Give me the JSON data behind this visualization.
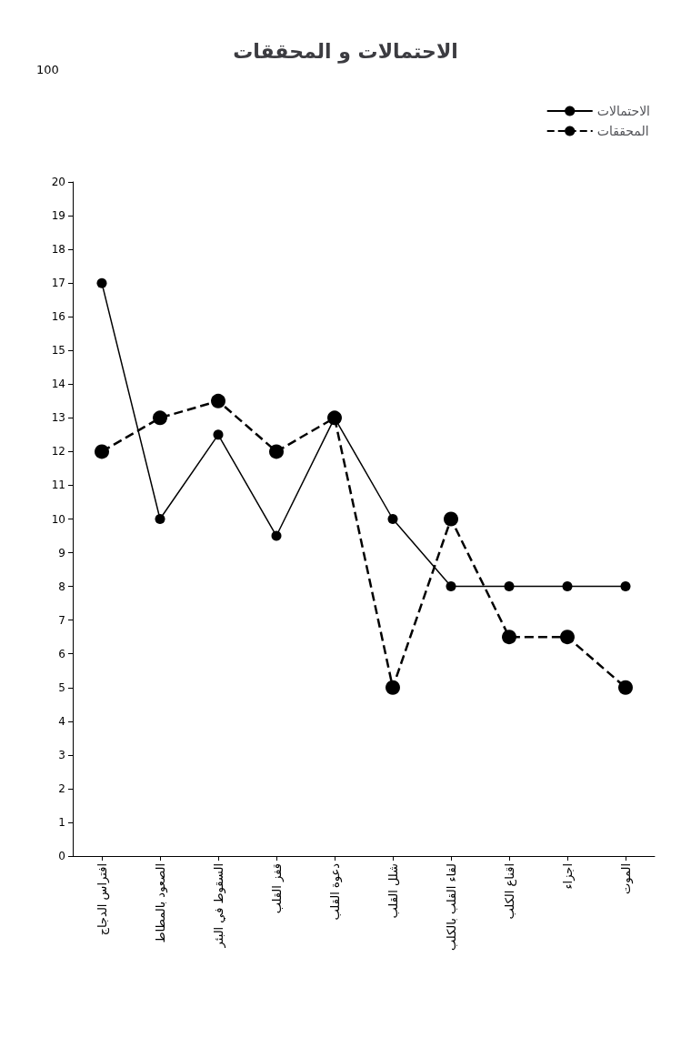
{
  "chart_data": {
    "type": "line",
    "title": "الاحتمالات و المحققات",
    "categories": [
      "افتراس الدجاج",
      "الصعود بالمطاط",
      "السقوط في البئر",
      "قفز القلب",
      "دعوة القلب",
      "شلل القلب",
      "لقاء القلب بالكلب",
      "اقناع الكلب",
      "اجزاء",
      "الموت"
    ],
    "series": [
      {
        "name": "الاحتمالات",
        "color": "#000000",
        "line_style": "solid",
        "values": [
          17,
          10,
          12.5,
          9.5,
          13,
          10,
          8,
          8,
          8,
          8
        ]
      },
      {
        "name": "المحققات",
        "color": "#000000",
        "line_style": "dashed",
        "values": [
          12,
          13,
          13.5,
          12,
          13,
          5,
          10,
          6.5,
          6.5,
          5
        ]
      }
    ],
    "ylim": [
      0,
      20
    ],
    "yticks": [
      0,
      1,
      2,
      3,
      4,
      5,
      6,
      7,
      8,
      9,
      10,
      11,
      12,
      13,
      14,
      15,
      16,
      17,
      18,
      19,
      20
    ],
    "annotations": [
      "100"
    ],
    "grid": false,
    "legend": "top right",
    "marker": "circle"
  }
}
